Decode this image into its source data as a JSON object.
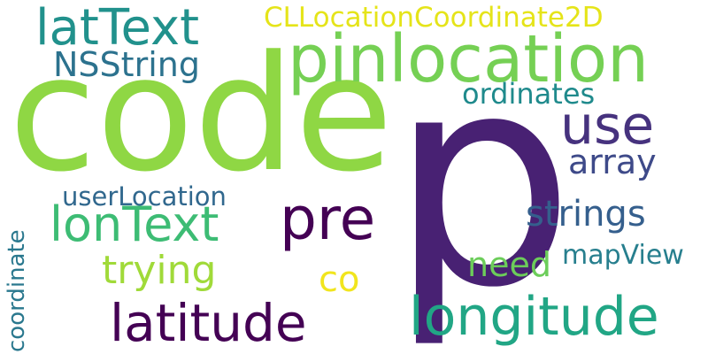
{
  "words": {
    "p": {
      "text": "p",
      "color": "#482173"
    },
    "code": {
      "text": "code",
      "color": "#8fd744"
    },
    "pinlocation": {
      "text": "pinlocation",
      "color": "#75d054"
    },
    "lattext": {
      "text": "latText",
      "color": "#21918c"
    },
    "cllocation": {
      "text": "CLLocationCoordinate2D",
      "color": "#e5e419"
    },
    "nsstring": {
      "text": "NSString",
      "color": "#2c728e"
    },
    "ordinates": {
      "text": "ordinates",
      "color": "#1f8a8c"
    },
    "use": {
      "text": "use",
      "color": "#46327e"
    },
    "array": {
      "text": "array",
      "color": "#3e4a89"
    },
    "userlocation": {
      "text": "userLocation",
      "color": "#31688e"
    },
    "pre": {
      "text": "pre",
      "color": "#440154"
    },
    "strings": {
      "text": "strings",
      "color": "#355f8d"
    },
    "lontext": {
      "text": "lonText",
      "color": "#3dbc74"
    },
    "need": {
      "text": "need",
      "color": "#6ccd5a"
    },
    "mapview": {
      "text": "mapView",
      "color": "#277f8e"
    },
    "trying": {
      "text": "trying",
      "color": "#a0da39"
    },
    "co": {
      "text": "co",
      "color": "#f1e51d"
    },
    "longitude": {
      "text": "longitude",
      "color": "#21a685"
    },
    "latitude": {
      "text": "latitude",
      "color": "#440154"
    },
    "coordinate": {
      "text": "coordinate",
      "color": "#2a788e"
    }
  }
}
